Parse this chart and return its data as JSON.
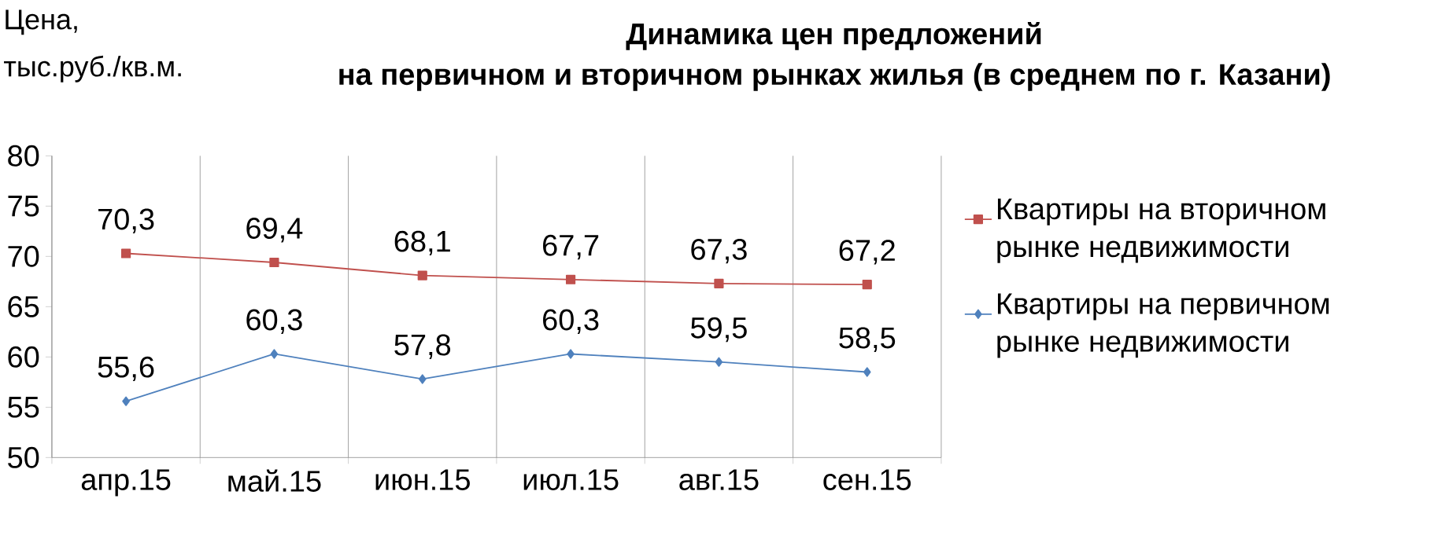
{
  "chart_data": {
    "type": "line",
    "title": "Динамика цен предложений",
    "subtitle": "на первичном и вторичном рынках жилья (в среднем по г. Казани)",
    "ylabel": "Цена, тыс.руб./кв.м.",
    "categories": [
      "апр.15",
      "май.15",
      "июн.15",
      "июл.15",
      "авг.15",
      "сен.15"
    ],
    "series": [
      {
        "name": "Квартиры на вторичном рынке недвижимости",
        "color": "#c0504d",
        "marker": "square",
        "values": [
          70.3,
          69.4,
          68.1,
          67.7,
          67.3,
          67.2
        ],
        "value_labels": [
          "70,3",
          "69,4",
          "68,1",
          "67,7",
          "67,3",
          "67,2"
        ]
      },
      {
        "name": "Квартиры на первичном рынке недвижимости",
        "color": "#4f81bd",
        "marker": "diamond",
        "values": [
          55.6,
          60.3,
          57.8,
          60.3,
          59.5,
          58.5
        ],
        "value_labels": [
          "55,6",
          "60,3",
          "57,8",
          "60,3",
          "59,5",
          "58,5"
        ]
      }
    ],
    "ylim": [
      50,
      80
    ],
    "yticks": [
      50,
      55,
      60,
      65,
      70,
      75,
      80
    ],
    "grid": "x",
    "legend": "right"
  }
}
